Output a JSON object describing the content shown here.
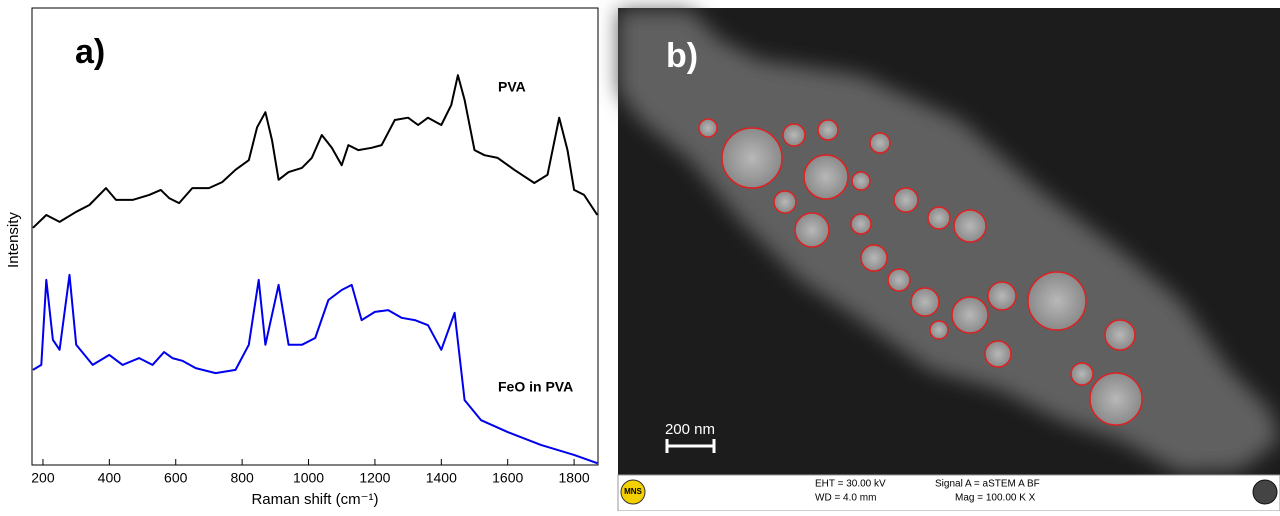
{
  "chart_data": {
    "type": "line",
    "panel_label": "a)",
    "x_label": "Raman shift (cm⁻¹)",
    "y_label": "Intensity",
    "xlim": [
      167,
      1872
    ],
    "xticks": [
      200,
      400,
      600,
      800,
      1000,
      1200,
      1400,
      1600,
      1800
    ],
    "ylim": [
      0,
      100
    ],
    "series": [
      {
        "name": "PVA",
        "color": "#000000",
        "x": [
          170,
          210,
          250,
          300,
          340,
          390,
          420,
          470,
          520,
          555,
          580,
          610,
          650,
          700,
          740,
          780,
          820,
          845,
          870,
          890,
          910,
          940,
          980,
          1010,
          1040,
          1070,
          1100,
          1120,
          1150,
          1190,
          1220,
          1260,
          1300,
          1330,
          1360,
          1400,
          1430,
          1450,
          1470,
          1500,
          1530,
          1570,
          1620,
          1680,
          1720,
          1755,
          1780,
          1800,
          1830,
          1870
        ],
        "values": [
          51.9,
          54.7,
          53.2,
          55.4,
          56.9,
          60.6,
          58.0,
          58.0,
          59.1,
          60.2,
          58.4,
          57.3,
          60.6,
          60.6,
          61.9,
          64.6,
          66.7,
          73.9,
          77.2,
          71.1,
          62.4,
          64.1,
          65.0,
          67.2,
          72.2,
          69.4,
          65.6,
          70.0,
          68.9,
          69.4,
          70.0,
          75.5,
          76.0,
          74.4,
          76.0,
          74.4,
          78.8,
          85.3,
          79.9,
          68.9,
          67.8,
          67.2,
          64.6,
          61.7,
          63.5,
          76.0,
          68.9,
          60.2,
          59.1,
          54.7
        ]
      },
      {
        "name": "FeO in PVA",
        "color": "#0000ee",
        "x": [
          170,
          195,
          210,
          230,
          250,
          280,
          300,
          350,
          400,
          440,
          490,
          530,
          565,
          590,
          620,
          660,
          720,
          780,
          820,
          850,
          870,
          910,
          940,
          980,
          1020,
          1060,
          1100,
          1130,
          1160,
          1200,
          1240,
          1280,
          1320,
          1360,
          1400,
          1440,
          1470,
          1520,
          1600,
          1700,
          1800,
          1870
        ],
        "values": [
          20.8,
          21.9,
          40.5,
          27.4,
          25.2,
          41.6,
          26.3,
          21.9,
          24.1,
          21.9,
          23.4,
          21.9,
          24.7,
          23.4,
          22.8,
          21.2,
          20.1,
          20.8,
          26.3,
          40.5,
          26.3,
          39.4,
          26.3,
          26.3,
          27.8,
          36.1,
          38.3,
          39.4,
          31.7,
          33.5,
          33.9,
          32.2,
          31.7,
          30.6,
          25.2,
          33.3,
          14.2,
          9.8,
          7.2,
          4.4,
          2.2,
          0.4
        ]
      }
    ]
  },
  "image_panel": {
    "panel_label": "b)",
    "scale_bar": "200 nm",
    "footer": {
      "logo": "MNS",
      "eht": "EHT = 30.00 kV",
      "wd": "WD = 4.0 mm",
      "signal": "Signal A = aSTEM A   BF",
      "mag": "Mag = 100.00 K X"
    }
  }
}
